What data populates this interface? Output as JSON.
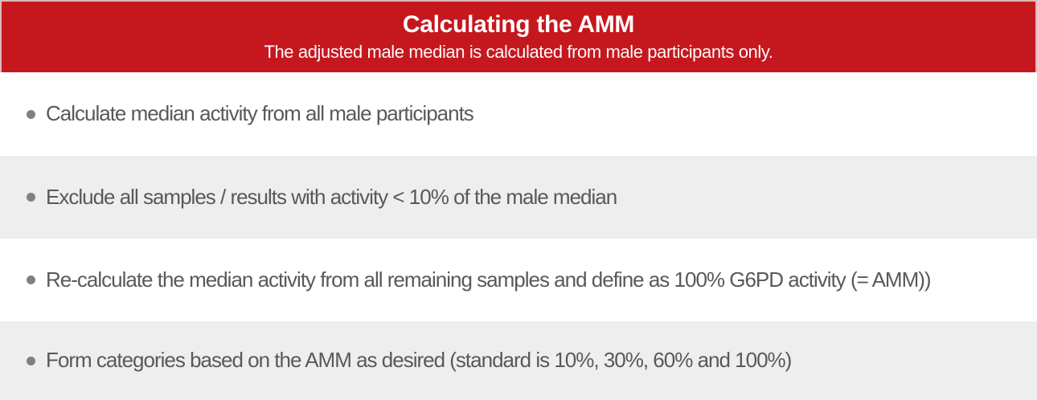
{
  "header": {
    "title": "Calculating the AMM",
    "subtitle": "The adjusted male median is calculated from male participants only.",
    "background_color": "#C5181E",
    "edge_color": "#DFB9BA",
    "text_color": "#FFFFFF"
  },
  "bullets": [
    {
      "text": "Calculate median activity from all male participants",
      "background": "#FFFFFF"
    },
    {
      "text": "Exclude all samples / results with activity < 10% of the male median",
      "background": "#EEEEEE"
    },
    {
      "text": "Re-calculate the median activity from all remaining samples and define as 100% G6PD activity (= AMM))",
      "background": "#FFFFFF"
    },
    {
      "text": "Form categories based on the AMM as desired (standard is 10%, 30%, 60% and 100%)",
      "background": "#EEEEEE"
    }
  ],
  "styles": {
    "bullet_dot_color": "#808080",
    "bullet_text_color": "#595959",
    "row_alt_color": "#EEEEEE"
  }
}
